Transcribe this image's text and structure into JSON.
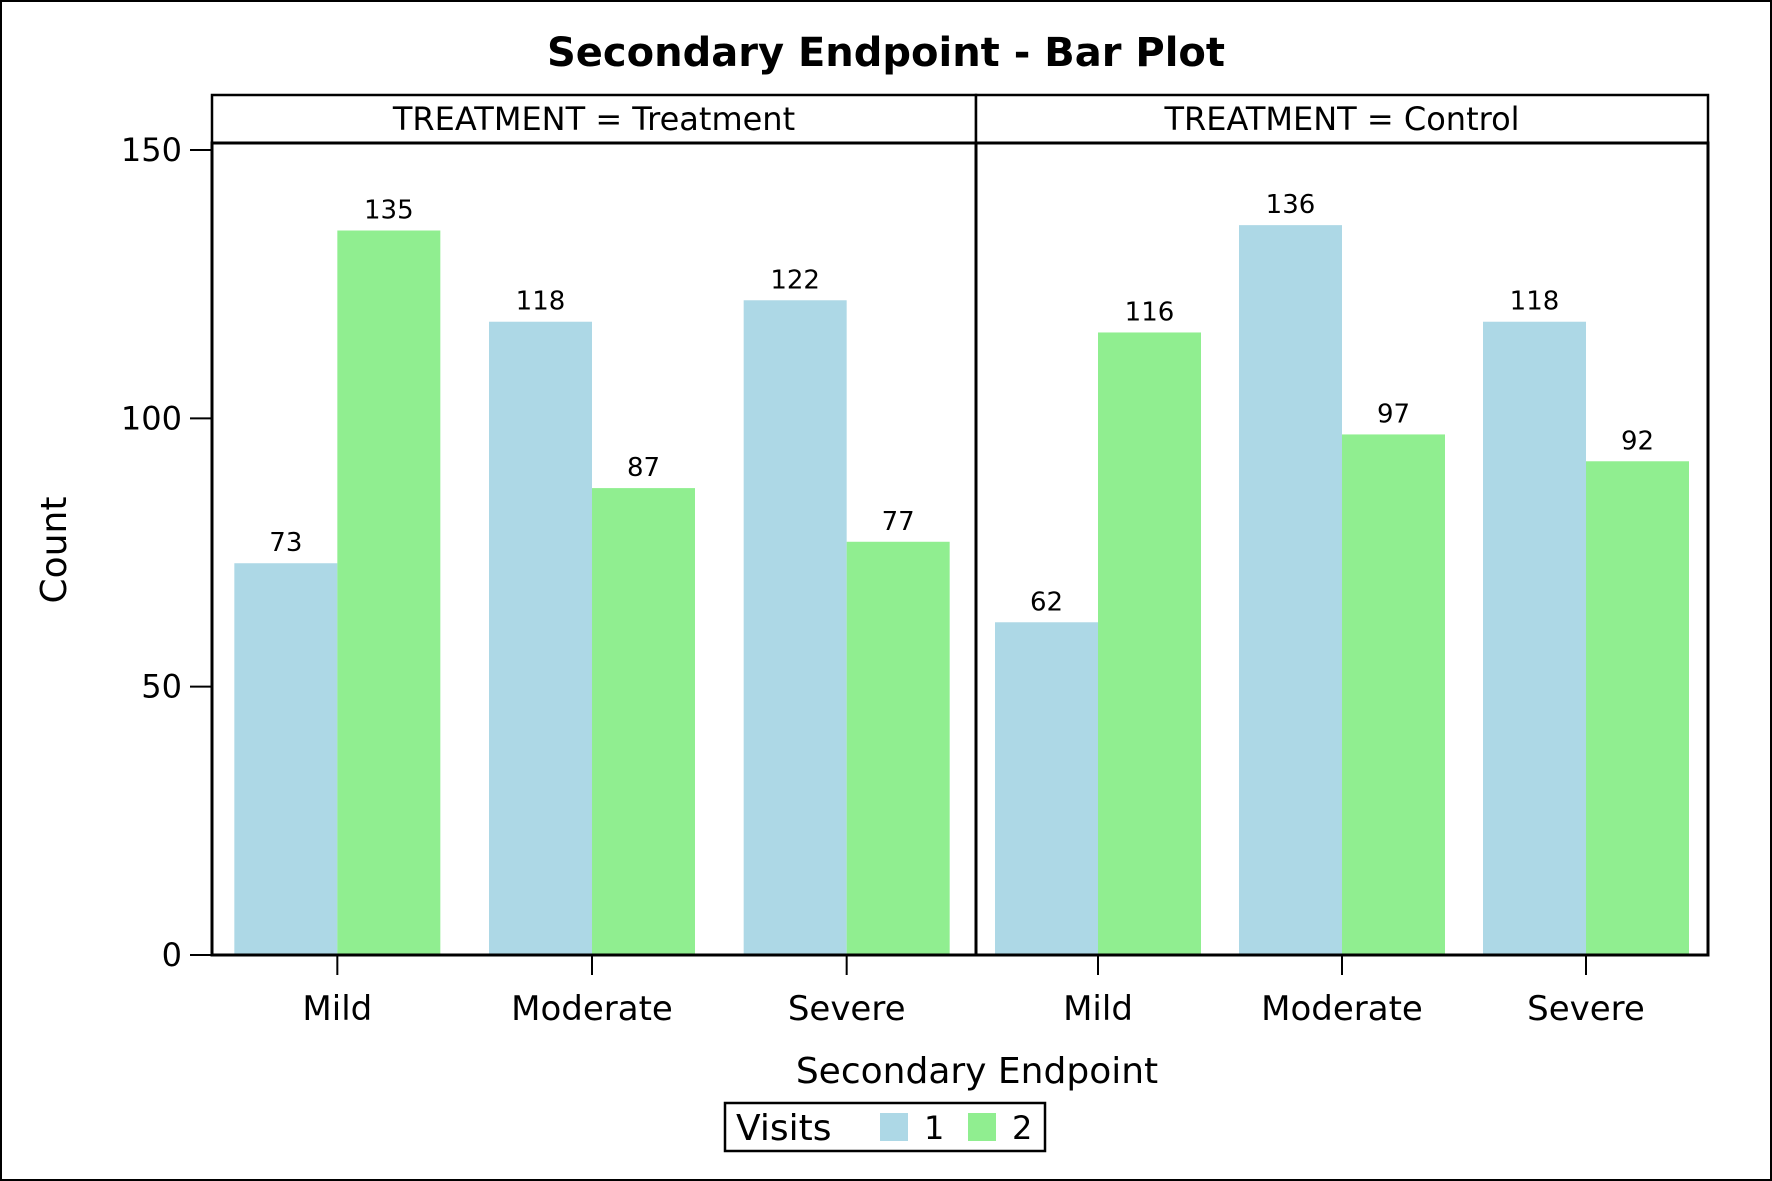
{
  "chart_data": {
    "type": "bar",
    "title": "Secondary Endpoint - Bar Plot",
    "xlabel": "Secondary Endpoint",
    "ylabel": "Count",
    "ylim": [
      0,
      150
    ],
    "yticks": [
      0,
      50,
      100,
      150
    ],
    "categories": [
      "Mild",
      "Moderate",
      "Severe"
    ],
    "panels": [
      {
        "label": "TREATMENT = Treatment",
        "series": [
          {
            "name": "1",
            "values": [
              73,
              118,
              122
            ]
          },
          {
            "name": "2",
            "values": [
              135,
              87,
              77
            ]
          }
        ]
      },
      {
        "label": "TREATMENT = Control",
        "series": [
          {
            "name": "1",
            "values": [
              62,
              136,
              118
            ]
          },
          {
            "name": "2",
            "values": [
              116,
              97,
              92
            ]
          }
        ]
      }
    ],
    "legend": {
      "title": "Visits",
      "placement": "bottom-center",
      "items": [
        {
          "name": "1",
          "color": "#add8e6"
        },
        {
          "name": "2",
          "color": "#90ee90"
        }
      ]
    },
    "grid": false
  }
}
